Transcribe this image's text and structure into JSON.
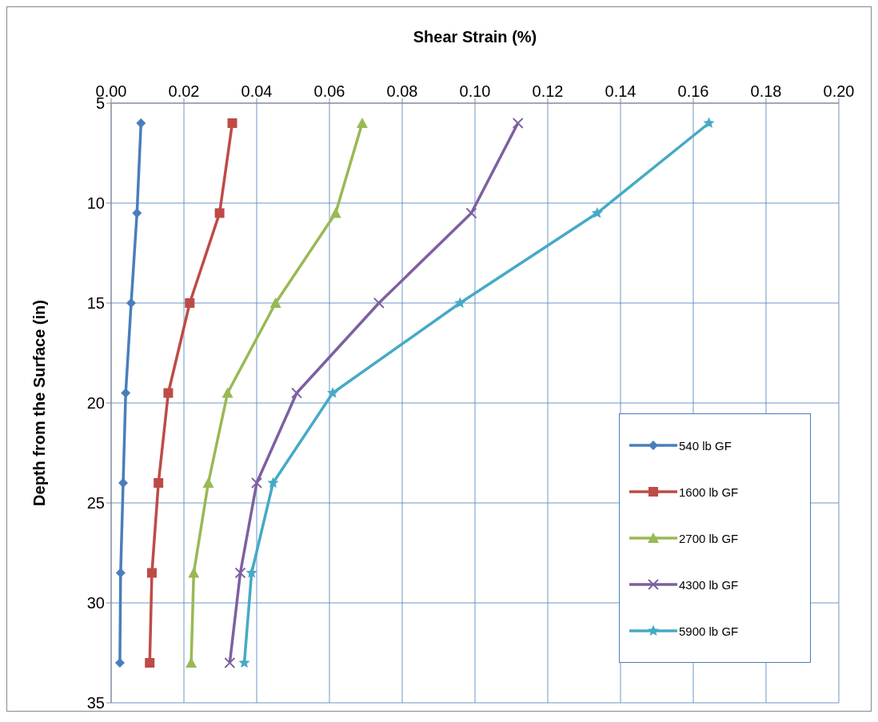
{
  "chart_data": {
    "type": "line",
    "xlabel": "Shear Strain (%)",
    "ylabel": "Depth from the Surface (in)",
    "xlim": [
      0,
      0.2
    ],
    "xticks": [
      {
        "value": 0,
        "label": "0.00"
      },
      {
        "value": 0.02,
        "label": "0.02"
      },
      {
        "value": 0.04,
        "label": "0.04"
      },
      {
        "value": 0.06,
        "label": "0.06"
      },
      {
        "value": 0.08,
        "label": "0.08"
      },
      {
        "value": 0.1,
        "label": "0.10"
      },
      {
        "value": 0.12,
        "label": "0.12"
      },
      {
        "value": 0.14,
        "label": "0.14"
      },
      {
        "value": 0.16,
        "label": "0.16"
      },
      {
        "value": 0.18,
        "label": "0.18"
      },
      {
        "value": 0.2,
        "label": "0.20"
      }
    ],
    "ylim": [
      35,
      5
    ],
    "yticks": [
      5,
      10,
      15,
      20,
      25,
      30,
      35
    ],
    "grid": true,
    "legend": "bottom right",
    "series": [
      {
        "name": "540 lb GF",
        "color": "#4a7ebb",
        "marker": "diamond",
        "x": [
          0.0082,
          0.0071,
          0.0055,
          0.004,
          0.0033,
          0.0026,
          0.0024
        ],
        "values": [
          6,
          10.5,
          15,
          19.5,
          24,
          28.5,
          33
        ]
      },
      {
        "name": "1600 lb GF",
        "color": "#be4b48",
        "marker": "square",
        "x": [
          0.0333,
          0.0298,
          0.0216,
          0.0157,
          0.013,
          0.0112,
          0.0106
        ],
        "values": [
          6,
          10.5,
          15,
          19.5,
          24,
          28.5,
          33
        ]
      },
      {
        "name": "2700 lb GF",
        "color": "#98b954",
        "marker": "triangle",
        "x": [
          0.069,
          0.0617,
          0.0452,
          0.032,
          0.0267,
          0.0227,
          0.022
        ],
        "values": [
          6,
          10.5,
          15,
          19.5,
          24,
          28.5,
          33
        ]
      },
      {
        "name": "4300 lb GF",
        "color": "#7d60a0",
        "marker": "cross",
        "x": [
          0.1118,
          0.099,
          0.0736,
          0.051,
          0.04,
          0.0355,
          0.0326
        ],
        "values": [
          6,
          10.5,
          15,
          19.5,
          24,
          28.5,
          33
        ]
      },
      {
        "name": "5900 lb GF",
        "color": "#46aac5",
        "marker": "star",
        "x": [
          0.1643,
          0.1336,
          0.0959,
          0.0609,
          0.0445,
          0.0386,
          0.0366
        ],
        "values": [
          6,
          10.5,
          15,
          19.5,
          24,
          28.5,
          33
        ]
      }
    ]
  }
}
